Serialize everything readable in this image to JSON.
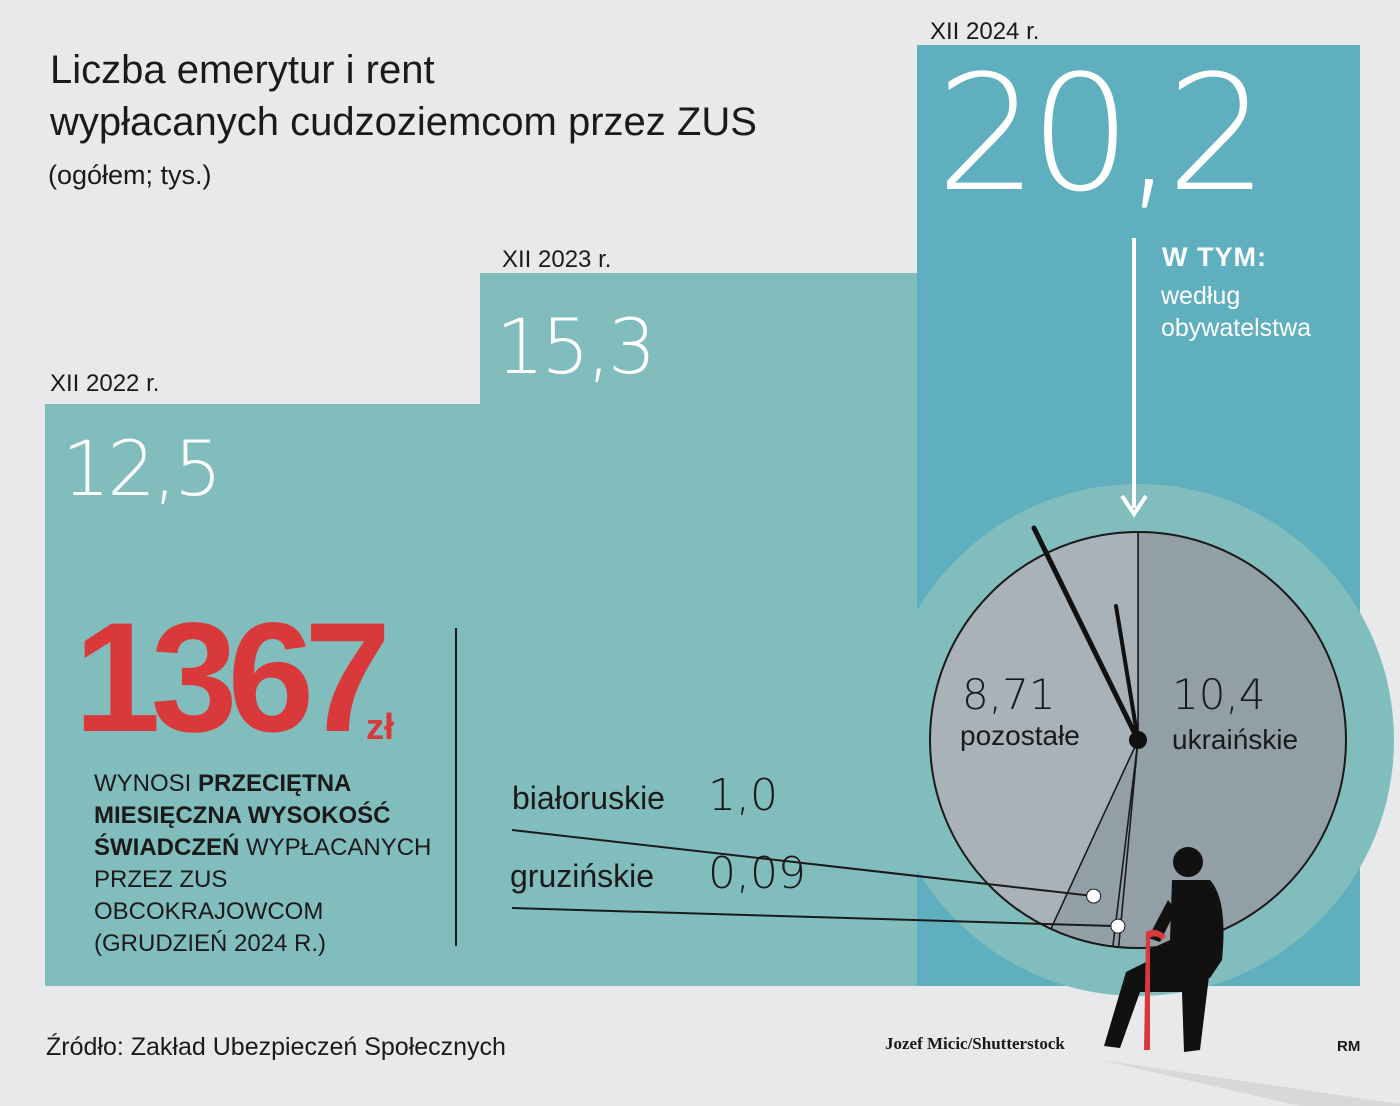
{
  "title_line1": "Liczba emerytur i rent",
  "title_line2": "wypłacanych cudzoziemcom przez ZUS",
  "subtitle": "(ogółem; tys.)",
  "chart_data": [
    {
      "type": "bar",
      "categories": [
        "XII 2022 r.",
        "XII 2023 r.",
        "XII 2024 r."
      ],
      "values": [
        12.5,
        15.3,
        20.2
      ],
      "value_labels": [
        "12,5",
        "15,3",
        "20,2"
      ],
      "colors": [
        "#82bdbe",
        "#82bdbe",
        "#5fafbf"
      ]
    },
    {
      "type": "pie",
      "slices": [
        {
          "label": "ukraińskie",
          "value": 10.4,
          "value_label": "10,4",
          "color": "#929fa6"
        },
        {
          "label": "gruzińskie",
          "value": 0.09,
          "value_label": "0,09",
          "color": "#929fa6"
        },
        {
          "label": "białoruskie",
          "value": 1.0,
          "value_label": "1,0",
          "color": "#929fa6"
        },
        {
          "label": "pozostałe",
          "value": 8.71,
          "value_label": "8,71",
          "color": "#a9b2b9"
        }
      ]
    }
  ],
  "breakdown": {
    "heading": "W TYM:",
    "line1": "według",
    "line2": "obywatelstwa"
  },
  "highlight": {
    "amount": "1367",
    "currency": "zł",
    "text_1": "WYNOSI ",
    "text_bold": "PRZECIĘTNA MIESIĘCZNA WYSOKOŚĆ ŚWIADCZEŃ",
    "text_2": " WYPŁACANYCH PRZEZ ZUS OBCOKRAJOWCOM (GRUDZIEŃ 2024 R.)"
  },
  "source": "Źródło: Zakład Ubezpieczeń Społecznych",
  "photo_credit": "Jozef Micic/Shutterstock",
  "author": "RM",
  "colors": {
    "background": "#e8e9eb",
    "bar_light": "#82bdbe",
    "bar_dark": "#5fafbf",
    "accent_red": "#d9393b"
  }
}
